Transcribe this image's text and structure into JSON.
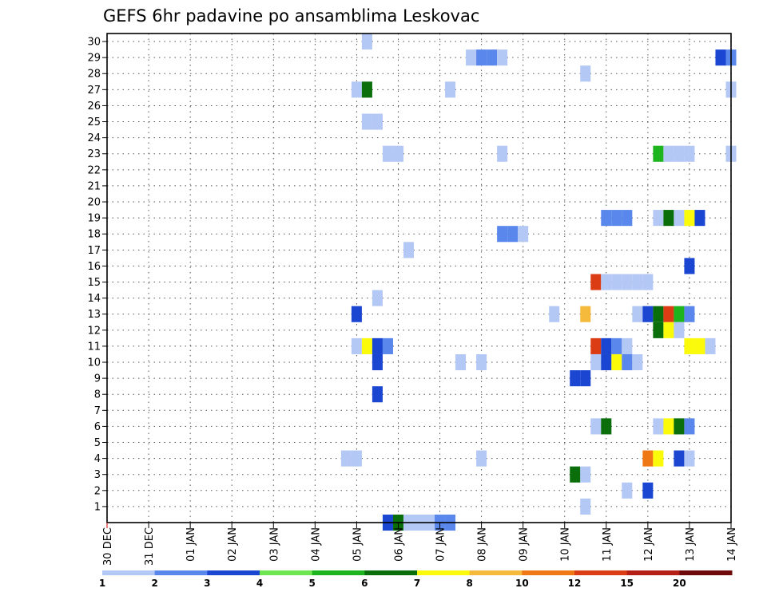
{
  "chart_data": {
    "type": "heatmap",
    "title": "GEFS 6hr padavine po ansamblima Leskovac",
    "xlabel": "",
    "ylabel": "",
    "x_tick_labels": [
      "30 DEC",
      "31 DEC",
      "01 JAN",
      "02 JAN",
      "03 JAN",
      "04 JAN",
      "05 JAN",
      "06 JAN",
      "07 JAN",
      "08 JAN",
      "09 JAN",
      "10 JAN",
      "11 JAN",
      "12 JAN",
      "13 JAN",
      "14 JAN"
    ],
    "xlim_days": [
      0,
      15
    ],
    "y_tick_labels": [
      "1",
      "2",
      "3",
      "4",
      "5",
      "6",
      "7",
      "8",
      "9",
      "10",
      "11",
      "12",
      "13",
      "14",
      "15",
      "16",
      "17",
      "18",
      "19",
      "20",
      "21",
      "22",
      "23",
      "24",
      "25",
      "26",
      "27",
      "28",
      "29",
      "30"
    ],
    "ylim_members": [
      0,
      30
    ],
    "grid": "dotted",
    "time_step_hours": 6,
    "color_scale": {
      "breaks": [
        "1",
        "2",
        "3",
        "4",
        "5",
        "6",
        "7",
        "8",
        "10",
        "12",
        "15",
        "20"
      ],
      "colors": [
        "#b4c8f5",
        "#5a87eb",
        "#1a46d2",
        "#6ee650",
        "#1eb41e",
        "#0a6e0a",
        "#fafa0a",
        "#f5b93c",
        "#f07814",
        "#dc3c14",
        "#b41e14",
        "#6e0a0a"
      ]
    },
    "cells": [
      {
        "m": 30,
        "d": 6.25,
        "c": 1
      },
      {
        "m": 29,
        "d": 8.75,
        "c": 1
      },
      {
        "m": 29,
        "d": 9.0,
        "c": 2
      },
      {
        "m": 29,
        "d": 9.25,
        "c": 2
      },
      {
        "m": 29,
        "d": 9.5,
        "c": 1
      },
      {
        "m": 29,
        "d": 14.75,
        "c": 3
      },
      {
        "m": 29,
        "d": 15.0,
        "c": 2
      },
      {
        "m": 28,
        "d": 11.5,
        "c": 1
      },
      {
        "m": 27,
        "d": 6.0,
        "c": 1
      },
      {
        "m": 27,
        "d": 6.25,
        "c": 6
      },
      {
        "m": 27,
        "d": 8.25,
        "c": 1
      },
      {
        "m": 27,
        "d": 15.0,
        "c": 1
      },
      {
        "m": 25,
        "d": 6.25,
        "c": 1
      },
      {
        "m": 25,
        "d": 6.5,
        "c": 1
      },
      {
        "m": 23,
        "d": 6.75,
        "c": 1
      },
      {
        "m": 23,
        "d": 7.0,
        "c": 1
      },
      {
        "m": 23,
        "d": 9.5,
        "c": 1
      },
      {
        "m": 23,
        "d": 13.25,
        "c": 5
      },
      {
        "m": 23,
        "d": 13.5,
        "c": 1
      },
      {
        "m": 23,
        "d": 13.75,
        "c": 1
      },
      {
        "m": 23,
        "d": 14.0,
        "c": 1
      },
      {
        "m": 23,
        "d": 15.0,
        "c": 1
      },
      {
        "m": 19,
        "d": 12.0,
        "c": 2
      },
      {
        "m": 19,
        "d": 12.25,
        "c": 2
      },
      {
        "m": 19,
        "d": 12.5,
        "c": 2
      },
      {
        "m": 19,
        "d": 13.25,
        "c": 1
      },
      {
        "m": 19,
        "d": 13.5,
        "c": 6
      },
      {
        "m": 19,
        "d": 13.75,
        "c": 1
      },
      {
        "m": 19,
        "d": 14.0,
        "c": 7
      },
      {
        "m": 19,
        "d": 14.25,
        "c": 3
      },
      {
        "m": 18,
        "d": 9.5,
        "c": 2
      },
      {
        "m": 18,
        "d": 9.75,
        "c": 2
      },
      {
        "m": 18,
        "d": 10.0,
        "c": 1
      },
      {
        "m": 17,
        "d": 7.25,
        "c": 1
      },
      {
        "m": 16,
        "d": 14.0,
        "c": 3
      },
      {
        "m": 15,
        "d": 11.75,
        "c": 10
      },
      {
        "m": 15,
        "d": 12.0,
        "c": 1
      },
      {
        "m": 15,
        "d": 12.25,
        "c": 1
      },
      {
        "m": 15,
        "d": 12.5,
        "c": 1
      },
      {
        "m": 15,
        "d": 12.75,
        "c": 1
      },
      {
        "m": 15,
        "d": 13.0,
        "c": 1
      },
      {
        "m": 14,
        "d": 6.5,
        "c": 1
      },
      {
        "m": 13,
        "d": 6.0,
        "c": 3
      },
      {
        "m": 13,
        "d": 10.75,
        "c": 1
      },
      {
        "m": 13,
        "d": 11.5,
        "c": 8
      },
      {
        "m": 13,
        "d": 12.75,
        "c": 1
      },
      {
        "m": 13,
        "d": 13.0,
        "c": 3
      },
      {
        "m": 13,
        "d": 13.25,
        "c": 6
      },
      {
        "m": 13,
        "d": 13.5,
        "c": 10
      },
      {
        "m": 13,
        "d": 13.75,
        "c": 5
      },
      {
        "m": 13,
        "d": 14.0,
        "c": 2
      },
      {
        "m": 12,
        "d": 13.25,
        "c": 6
      },
      {
        "m": 12,
        "d": 13.5,
        "c": 7
      },
      {
        "m": 12,
        "d": 13.75,
        "c": 1
      },
      {
        "m": 11,
        "d": 6.0,
        "c": 1
      },
      {
        "m": 11,
        "d": 6.25,
        "c": 7
      },
      {
        "m": 11,
        "d": 6.5,
        "c": 3
      },
      {
        "m": 11,
        "d": 6.75,
        "c": 2
      },
      {
        "m": 11,
        "d": 11.75,
        "c": 10
      },
      {
        "m": 11,
        "d": 12.0,
        "c": 3
      },
      {
        "m": 11,
        "d": 12.25,
        "c": 2
      },
      {
        "m": 11,
        "d": 12.5,
        "c": 1
      },
      {
        "m": 11,
        "d": 14.0,
        "c": 7
      },
      {
        "m": 11,
        "d": 14.25,
        "c": 7
      },
      {
        "m": 11,
        "d": 14.5,
        "c": 1
      },
      {
        "m": 10,
        "d": 6.5,
        "c": 3
      },
      {
        "m": 10,
        "d": 8.5,
        "c": 1
      },
      {
        "m": 10,
        "d": 9.0,
        "c": 1
      },
      {
        "m": 10,
        "d": 11.75,
        "c": 1
      },
      {
        "m": 10,
        "d": 12.0,
        "c": 3
      },
      {
        "m": 10,
        "d": 12.25,
        "c": 7
      },
      {
        "m": 10,
        "d": 12.5,
        "c": 2
      },
      {
        "m": 10,
        "d": 12.75,
        "c": 1
      },
      {
        "m": 9,
        "d": 11.25,
        "c": 3
      },
      {
        "m": 9,
        "d": 11.5,
        "c": 3
      },
      {
        "m": 8,
        "d": 6.5,
        "c": 3
      },
      {
        "m": 6,
        "d": 11.75,
        "c": 1
      },
      {
        "m": 6,
        "d": 12.0,
        "c": 6
      },
      {
        "m": 6,
        "d": 13.25,
        "c": 1
      },
      {
        "m": 6,
        "d": 13.5,
        "c": 7
      },
      {
        "m": 6,
        "d": 13.75,
        "c": 6
      },
      {
        "m": 6,
        "d": 14.0,
        "c": 2
      },
      {
        "m": 4,
        "d": 5.75,
        "c": 1
      },
      {
        "m": 4,
        "d": 6.0,
        "c": 1
      },
      {
        "m": 4,
        "d": 9.0,
        "c": 1
      },
      {
        "m": 4,
        "d": 13.0,
        "c": 9
      },
      {
        "m": 4,
        "d": 13.25,
        "c": 7
      },
      {
        "m": 4,
        "d": 13.75,
        "c": 3
      },
      {
        "m": 4,
        "d": 14.0,
        "c": 1
      },
      {
        "m": 3,
        "d": 11.25,
        "c": 6
      },
      {
        "m": 3,
        "d": 11.5,
        "c": 1
      },
      {
        "m": 2,
        "d": 12.5,
        "c": 1
      },
      {
        "m": 2,
        "d": 13.0,
        "c": 3
      },
      {
        "m": 1,
        "d": 11.5,
        "c": 1
      },
      {
        "m": 0,
        "d": 6.75,
        "c": 3
      },
      {
        "m": 0,
        "d": 7.0,
        "c": 6
      },
      {
        "m": 0,
        "d": 7.25,
        "c": 1
      },
      {
        "m": 0,
        "d": 7.5,
        "c": 1
      },
      {
        "m": 0,
        "d": 7.75,
        "c": 1
      },
      {
        "m": 0,
        "d": 8.0,
        "c": 2
      },
      {
        "m": 0,
        "d": 8.25,
        "c": 2
      }
    ]
  }
}
